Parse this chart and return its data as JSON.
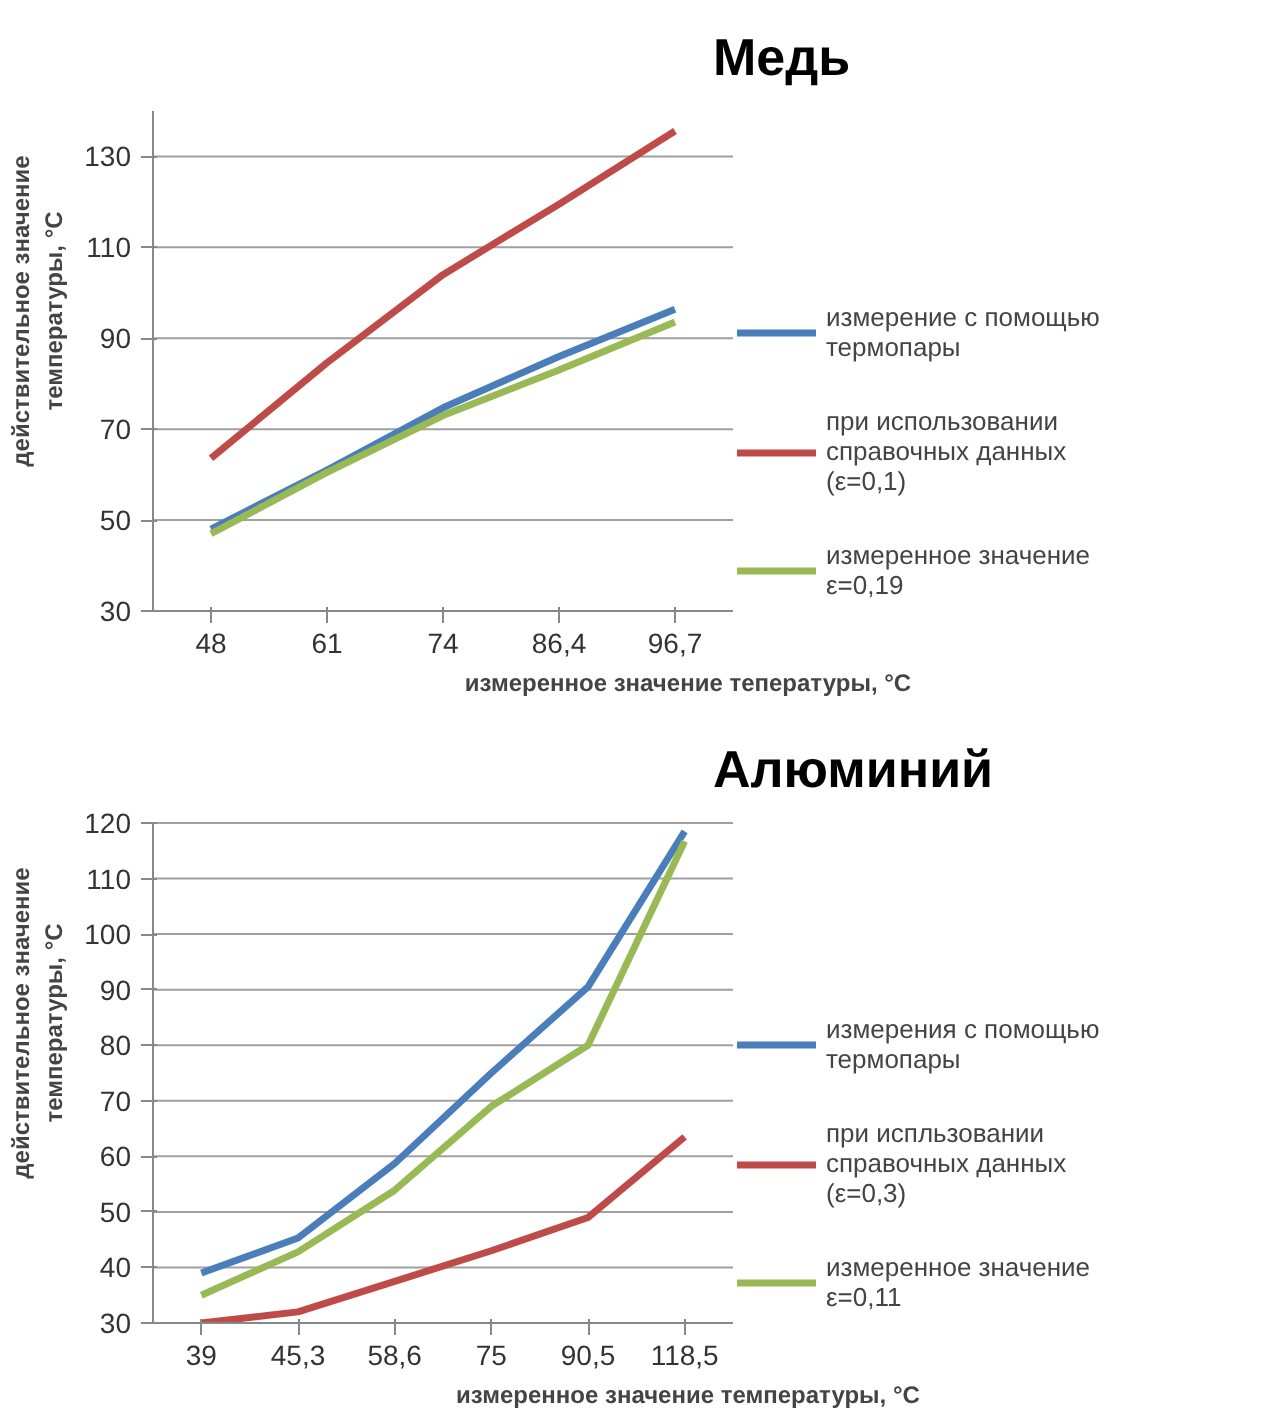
{
  "chart_data": [
    {
      "type": "line",
      "title": "Медь",
      "xlabel": "измеренное значение тепературы, °C",
      "ylabel": "действительное значение температуры, °C",
      "categories": [
        "48",
        "61",
        "74",
        "86,4",
        "96,7"
      ],
      "ylim": [
        30,
        140
      ],
      "yticks": [
        30,
        50,
        70,
        90,
        110,
        130
      ],
      "grid": "y",
      "legend": "right",
      "marker": "none",
      "line_style": "solid",
      "series": [
        {
          "name": "измерение с помощью термопары",
          "color": "#4a7ebb",
          "values": [
            48,
            61,
            74.7,
            86,
            96.4
          ]
        },
        {
          "name": "при использовании справочных данных (ε=0,1)",
          "color": "#be4b48",
          "values": [
            63.6,
            84.6,
            104,
            119.5,
            135.6
          ]
        },
        {
          "name": "измеренное значение ε=0,19",
          "color": "#98b954",
          "values": [
            47,
            60.5,
            73,
            83,
            93.6
          ]
        }
      ]
    },
    {
      "type": "line",
      "title": "Алюминий",
      "xlabel": "измеренное значение температуры, °C",
      "ylabel": "действительное значение температуры, °C",
      "categories": [
        "39",
        "45,3",
        "58,6",
        "75",
        "90,5",
        "118,5"
      ],
      "ylim": [
        30,
        120
      ],
      "yticks": [
        30,
        40,
        50,
        60,
        70,
        80,
        90,
        100,
        110,
        120
      ],
      "grid": "y",
      "legend": "right",
      "marker": "none",
      "line_style": "solid",
      "series": [
        {
          "name": "измерения с помощью термопары",
          "color": "#4a7ebb",
          "values": [
            39,
            45.3,
            58.7,
            75,
            90.5,
            118.5
          ]
        },
        {
          "name": "при испльзовании справочных данных (ε=0,3)",
          "color": "#be4b48",
          "values": [
            30,
            32,
            37.5,
            43,
            49,
            63.5
          ]
        },
        {
          "name": "измеренное значение ε=0,11",
          "color": "#98b954",
          "values": [
            35,
            42.8,
            53.9,
            69,
            80,
            116.7
          ]
        }
      ]
    }
  ]
}
